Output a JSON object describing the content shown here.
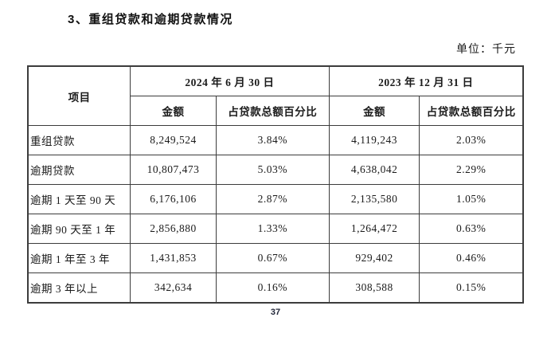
{
  "page": {
    "title": "3、重组贷款和逾期贷款情况",
    "unit_label": "单位：千元",
    "page_number": "37"
  },
  "table": {
    "header": {
      "item": "项目",
      "periods": [
        {
          "label": "2024 年 6 月 30 日",
          "sub": [
            "金额",
            "占贷款总额百分比"
          ]
        },
        {
          "label": "2023 年 12 月 31 日",
          "sub": [
            "金额",
            "占贷款总额百分比"
          ]
        }
      ]
    },
    "rows": [
      {
        "label": "重组贷款",
        "values": [
          "8,249,524",
          "3.84%",
          "4,119,243",
          "2.03%"
        ]
      },
      {
        "label": "逾期贷款",
        "values": [
          "10,807,473",
          "5.03%",
          "4,638,042",
          "2.29%"
        ]
      },
      {
        "label": "逾期 1 天至 90 天",
        "values": [
          "6,176,106",
          "2.87%",
          "2,135,580",
          "1.05%"
        ]
      },
      {
        "label": "逾期 90 天至 1 年",
        "values": [
          "2,856,880",
          "1.33%",
          "1,264,472",
          "0.63%"
        ]
      },
      {
        "label": "逾期 1 年至 3 年",
        "values": [
          "1,431,853",
          "0.67%",
          "929,402",
          "0.46%"
        ]
      },
      {
        "label": "逾期 3 年以上",
        "values": [
          "342,634",
          "0.16%",
          "308,588",
          "0.15%"
        ]
      }
    ]
  },
  "colors": {
    "text": "#1b1b1b",
    "border": "#3c3c3c",
    "background": "#ffffff"
  }
}
